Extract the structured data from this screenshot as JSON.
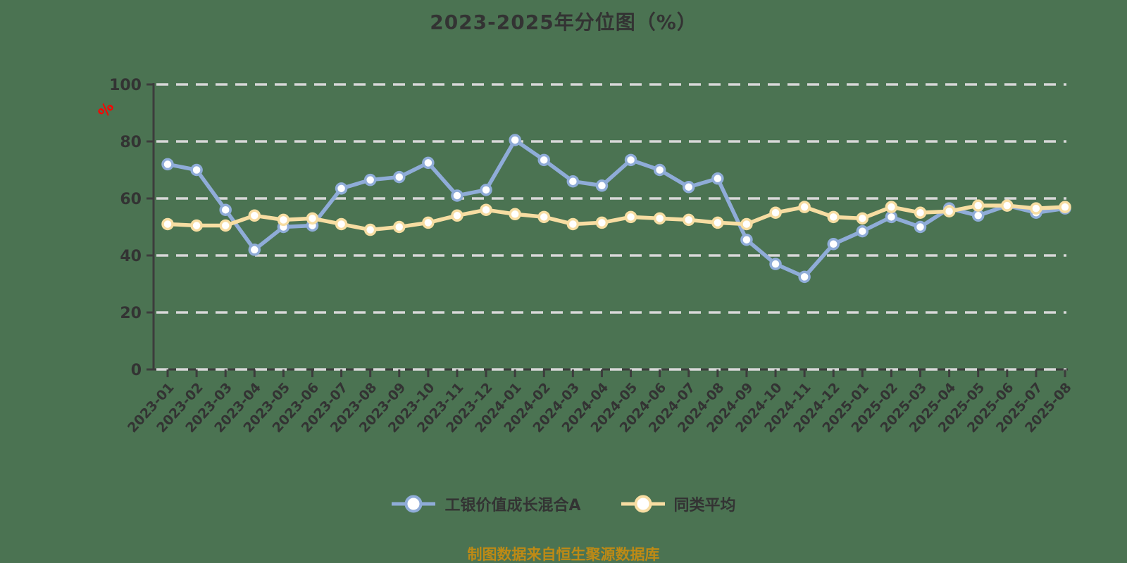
{
  "title": "2023-2025年分位图（%）",
  "y_axis_unit": "%",
  "footer_note": "制图数据来自恒生聚源数据库",
  "colors": {
    "background": "#4B7352",
    "title_text": "#333333",
    "axis_line": "#3C3C3C",
    "tick_label": "#333333",
    "gridline": "#D8D8D8",
    "series_fund": "#8FACD8",
    "series_average": "#F7DDA2",
    "marker_fill": "#FFFFFF",
    "y_unit_label": "#FF0000",
    "footer_text": "#BE8A15"
  },
  "legend": {
    "items": [
      {
        "label": "工银价值成长混合A",
        "color": "#8FACD8"
      },
      {
        "label": "同类平均",
        "color": "#F7DDA2"
      }
    ]
  },
  "chart_data": {
    "type": "line",
    "title": "2023-2025年分位图（%）",
    "xlabel": "",
    "ylabel": "%",
    "ylim": [
      0,
      100
    ],
    "yticks": [
      0,
      20,
      40,
      60,
      80,
      100
    ],
    "grid": "horizontal-dashed",
    "legend_position": "bottom",
    "categories": [
      "2023-01",
      "2023-02",
      "2023-03",
      "2023-04",
      "2023-05",
      "2023-06",
      "2023-07",
      "2023-08",
      "2023-09",
      "2023-10",
      "2023-11",
      "2023-12",
      "2024-01",
      "2024-02",
      "2024-03",
      "2024-04",
      "2024-05",
      "2024-06",
      "2024-07",
      "2024-08",
      "2024-09",
      "2024-10",
      "2024-11",
      "2024-12",
      "2025-01",
      "2025-02",
      "2025-03",
      "2025-04",
      "2025-05",
      "2025-06",
      "2025-07",
      "2025-08"
    ],
    "series": [
      {
        "name": "工银价值成长混合A",
        "color": "#8FACD8",
        "values": [
          72,
          70,
          56,
          42,
          50,
          50.5,
          63.5,
          66.5,
          67.5,
          72.5,
          61,
          63,
          80.5,
          73.5,
          66,
          64.5,
          73.5,
          70,
          64,
          67,
          45.5,
          37,
          32.5,
          44,
          48.5,
          53.5,
          50,
          56.5,
          54,
          57.5,
          55,
          56.5
        ]
      },
      {
        "name": "同类平均",
        "color": "#F7DDA2",
        "values": [
          51,
          50.5,
          50.5,
          54,
          52.5,
          53,
          51,
          49,
          50,
          51.5,
          54,
          56,
          54.5,
          53.5,
          51,
          51.5,
          53.5,
          53,
          52.5,
          51.5,
          51,
          55,
          57,
          53.5,
          53,
          57,
          55,
          55.5,
          57.5,
          57.5,
          56.5,
          57
        ]
      }
    ]
  }
}
